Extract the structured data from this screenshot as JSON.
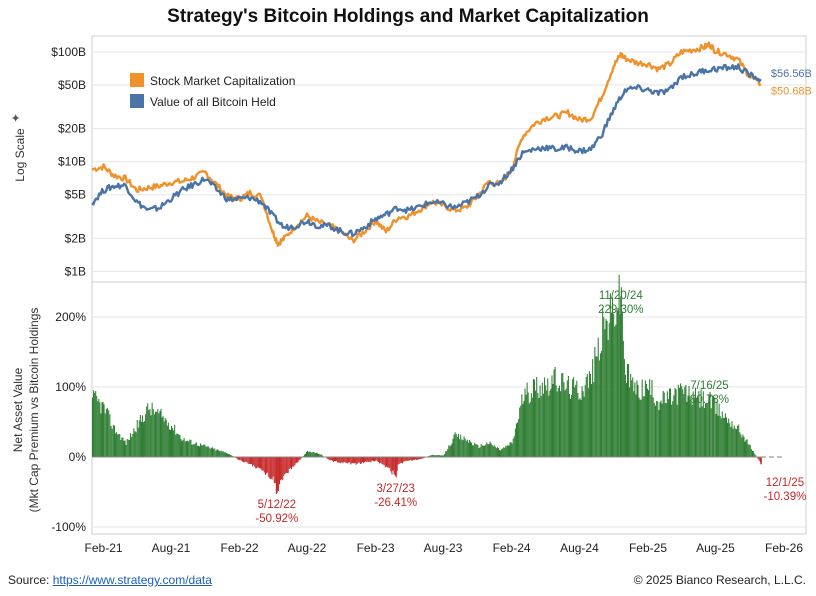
{
  "title": "Strategy's Bitcoin Holdings and Market Capitalization",
  "footer": {
    "source_label": "Source:",
    "source_link": "https://www.strategy.com/data",
    "copyright": "© 2025 Bianco Research, L.L.C."
  },
  "chart_data": [
    {
      "type": "line",
      "panel": "top",
      "ylabel": "Log Scale",
      "y_scale": "log",
      "y_ticks": [
        "$100B",
        "$50B",
        "$20B",
        "$10B",
        "$5B",
        "$2B",
        "$1B"
      ],
      "y_tick_values": [
        100,
        50,
        20,
        10,
        5,
        2,
        1
      ],
      "ylim": [
        0.8,
        140
      ],
      "legend": {
        "placement": "top-left"
      },
      "series": [
        {
          "name": "Stock Market Capitalization",
          "color": "#f0922b",
          "end_label": "$50.68B",
          "points": [
            [
              "2021-01-01",
              8.5
            ],
            [
              "2021-02-01",
              9.0
            ],
            [
              "2021-03-01",
              7.5
            ],
            [
              "2021-04-01",
              7.0
            ],
            [
              "2021-05-01",
              5.5
            ],
            [
              "2021-06-01",
              5.8
            ],
            [
              "2021-07-01",
              6.0
            ],
            [
              "2021-08-01",
              6.5
            ],
            [
              "2021-09-01",
              6.6
            ],
            [
              "2021-10-01",
              7.2
            ],
            [
              "2021-11-01",
              8.0
            ],
            [
              "2021-12-01",
              6.2
            ],
            [
              "2022-01-01",
              4.8
            ],
            [
              "2022-02-01",
              4.6
            ],
            [
              "2022-03-01",
              5.2
            ],
            [
              "2022-04-01",
              4.8
            ],
            [
              "2022-05-01",
              2.3
            ],
            [
              "2022-05-15",
              1.8
            ],
            [
              "2022-06-01",
              2.0
            ],
            [
              "2022-07-01",
              2.6
            ],
            [
              "2022-08-01",
              3.2
            ],
            [
              "2022-09-01",
              2.8
            ],
            [
              "2022-10-01",
              2.6
            ],
            [
              "2022-11-01",
              2.3
            ],
            [
              "2022-12-01",
              1.9
            ],
            [
              "2023-01-01",
              2.3
            ],
            [
              "2023-02-01",
              2.9
            ],
            [
              "2023-03-01",
              2.3
            ],
            [
              "2023-04-01",
              3.1
            ],
            [
              "2023-05-01",
              3.2
            ],
            [
              "2023-06-01",
              3.7
            ],
            [
              "2023-07-01",
              4.3
            ],
            [
              "2023-08-01",
              4.0
            ],
            [
              "2023-09-01",
              3.6
            ],
            [
              "2023-10-01",
              3.8
            ],
            [
              "2023-11-01",
              4.8
            ],
            [
              "2023-12-01",
              6.6
            ],
            [
              "2024-01-01",
              6.2
            ],
            [
              "2024-02-01",
              8.5
            ],
            [
              "2024-03-01",
              17.0
            ],
            [
              "2024-04-01",
              22.0
            ],
            [
              "2024-05-01",
              25.0
            ],
            [
              "2024-06-01",
              26.0
            ],
            [
              "2024-07-01",
              28.0
            ],
            [
              "2024-08-01",
              24.0
            ],
            [
              "2024-09-01",
              25.0
            ],
            [
              "2024-10-01",
              40.0
            ],
            [
              "2024-11-01",
              75.0
            ],
            [
              "2024-11-20",
              95.0
            ],
            [
              "2024-12-01",
              88.0
            ],
            [
              "2025-01-01",
              80.0
            ],
            [
              "2025-02-01",
              78.0
            ],
            [
              "2025-03-01",
              70.0
            ],
            [
              "2025-04-01",
              78.0
            ],
            [
              "2025-05-01",
              100.0
            ],
            [
              "2025-06-01",
              105.0
            ],
            [
              "2025-07-01",
              110.0
            ],
            [
              "2025-07-16",
              118.0
            ],
            [
              "2025-08-01",
              102.0
            ],
            [
              "2025-09-01",
              96.0
            ],
            [
              "2025-10-01",
              85.0
            ],
            [
              "2025-11-01",
              60.0
            ],
            [
              "2025-12-01",
              50.68
            ]
          ]
        },
        {
          "name": "Value of all Bitcoin Held",
          "color": "#4a74a8",
          "end_label": "$56.56B",
          "points": [
            [
              "2021-01-01",
              4.2
            ],
            [
              "2021-02-01",
              5.5
            ],
            [
              "2021-03-01",
              6.0
            ],
            [
              "2021-04-01",
              6.1
            ],
            [
              "2021-05-01",
              4.3
            ],
            [
              "2021-06-01",
              3.6
            ],
            [
              "2021-07-01",
              3.8
            ],
            [
              "2021-08-01",
              4.6
            ],
            [
              "2021-09-01",
              5.5
            ],
            [
              "2021-10-01",
              6.2
            ],
            [
              "2021-11-01",
              7.0
            ],
            [
              "2021-12-01",
              5.6
            ],
            [
              "2022-01-01",
              4.5
            ],
            [
              "2022-02-01",
              4.6
            ],
            [
              "2022-03-01",
              4.7
            ],
            [
              "2022-04-01",
              4.3
            ],
            [
              "2022-05-01",
              3.2
            ],
            [
              "2022-06-01",
              2.5
            ],
            [
              "2022-07-01",
              2.6
            ],
            [
              "2022-08-01",
              2.9
            ],
            [
              "2022-09-01",
              2.6
            ],
            [
              "2022-10-01",
              2.6
            ],
            [
              "2022-11-01",
              2.3
            ],
            [
              "2022-12-01",
              2.2
            ],
            [
              "2023-01-01",
              2.5
            ],
            [
              "2023-02-01",
              3.0
            ],
            [
              "2023-03-01",
              3.3
            ],
            [
              "2023-04-01",
              3.8
            ],
            [
              "2023-05-01",
              3.6
            ],
            [
              "2023-06-01",
              3.9
            ],
            [
              "2023-07-01",
              4.3
            ],
            [
              "2023-08-01",
              4.1
            ],
            [
              "2023-09-01",
              3.8
            ],
            [
              "2023-10-01",
              4.2
            ],
            [
              "2023-11-01",
              4.8
            ],
            [
              "2023-12-01",
              6.0
            ],
            [
              "2024-01-01",
              6.5
            ],
            [
              "2024-02-01",
              8.5
            ],
            [
              "2024-03-01",
              12.0
            ],
            [
              "2024-04-01",
              13.0
            ],
            [
              "2024-05-01",
              13.5
            ],
            [
              "2024-06-01",
              13.0
            ],
            [
              "2024-07-01",
              13.5
            ],
            [
              "2024-08-01",
              12.5
            ],
            [
              "2024-09-01",
              13.0
            ],
            [
              "2024-10-01",
              18.0
            ],
            [
              "2024-11-01",
              30.0
            ],
            [
              "2024-12-01",
              45.0
            ],
            [
              "2025-01-01",
              47.0
            ],
            [
              "2025-02-01",
              45.0
            ],
            [
              "2025-03-01",
              42.0
            ],
            [
              "2025-04-01",
              45.0
            ],
            [
              "2025-05-01",
              60.0
            ],
            [
              "2025-06-01",
              62.0
            ],
            [
              "2025-07-01",
              68.0
            ],
            [
              "2025-08-01",
              70.0
            ],
            [
              "2025-09-01",
              72.0
            ],
            [
              "2025-10-01",
              73.0
            ],
            [
              "2025-11-01",
              62.0
            ],
            [
              "2025-12-01",
              56.56
            ]
          ]
        }
      ]
    },
    {
      "type": "bar",
      "panel": "bottom",
      "ylabel": "Net Asset Value\n(Mkt Cap Premium vs Bitcoin Holdings",
      "ylabel_lines": [
        "Net Asset Value",
        "(Mkt Cap Premium vs Bitcoin Holdings"
      ],
      "y_ticks": [
        "200%",
        "100%",
        "0%",
        "-100%"
      ],
      "y_tick_values": [
        200,
        100,
        0,
        -100
      ],
      "ylim": [
        -110,
        250
      ],
      "positive_color": "#2e7d32",
      "negative_color": "#c62828",
      "points": [
        [
          "2021-01-01",
          85
        ],
        [
          "2021-02-01",
          70
        ],
        [
          "2021-03-01",
          40
        ],
        [
          "2021-04-01",
          20
        ],
        [
          "2021-05-01",
          45
        ],
        [
          "2021-06-01",
          70
        ],
        [
          "2021-07-01",
          60
        ],
        [
          "2021-08-01",
          45
        ],
        [
          "2021-09-01",
          25
        ],
        [
          "2021-10-01",
          20
        ],
        [
          "2021-11-01",
          15
        ],
        [
          "2021-12-01",
          10
        ],
        [
          "2022-01-01",
          5
        ],
        [
          "2022-02-01",
          -5
        ],
        [
          "2022-03-01",
          -10
        ],
        [
          "2022-04-01",
          -20
        ],
        [
          "2022-05-01",
          -30
        ],
        [
          "2022-05-12",
          -50.92
        ],
        [
          "2022-06-01",
          -25
        ],
        [
          "2022-07-01",
          -10
        ],
        [
          "2022-08-01",
          8
        ],
        [
          "2022-09-01",
          5
        ],
        [
          "2022-10-01",
          -5
        ],
        [
          "2022-11-01",
          -8
        ],
        [
          "2022-12-01",
          -10
        ],
        [
          "2023-01-01",
          -8
        ],
        [
          "2023-02-01",
          -5
        ],
        [
          "2023-03-01",
          -15
        ],
        [
          "2023-03-27",
          -26.41
        ],
        [
          "2023-04-01",
          -10
        ],
        [
          "2023-05-01",
          -5
        ],
        [
          "2023-06-01",
          -3
        ],
        [
          "2023-07-01",
          3
        ],
        [
          "2023-08-01",
          2
        ],
        [
          "2023-09-01",
          30
        ],
        [
          "2023-10-01",
          25
        ],
        [
          "2023-11-01",
          15
        ],
        [
          "2023-12-01",
          20
        ],
        [
          "2024-01-01",
          10
        ],
        [
          "2024-02-01",
          20
        ],
        [
          "2024-03-01",
          85
        ],
        [
          "2024-04-01",
          100
        ],
        [
          "2024-05-01",
          105
        ],
        [
          "2024-06-01",
          110
        ],
        [
          "2024-07-01",
          100
        ],
        [
          "2024-08-01",
          95
        ],
        [
          "2024-09-01",
          115
        ],
        [
          "2024-10-01",
          180
        ],
        [
          "2024-11-20",
          229.3
        ],
        [
          "2024-12-01",
          120
        ],
        [
          "2025-01-01",
          95
        ],
        [
          "2025-02-01",
          100
        ],
        [
          "2025-03-01",
          80
        ],
        [
          "2025-04-01",
          85
        ],
        [
          "2025-05-01",
          95
        ],
        [
          "2025-06-01",
          85
        ],
        [
          "2025-07-16",
          80.78
        ],
        [
          "2025-08-01",
          70
        ],
        [
          "2025-09-01",
          55
        ],
        [
          "2025-10-01",
          40
        ],
        [
          "2025-11-01",
          15
        ],
        [
          "2025-12-01",
          -10.39
        ]
      ],
      "zero_line_dashed_to": "2026-02-01"
    }
  ],
  "x_axis": {
    "ticks": [
      "Feb-21",
      "Aug-21",
      "Feb-22",
      "Aug-22",
      "Feb-23",
      "Aug-23",
      "Feb-24",
      "Aug-24",
      "Feb-25",
      "Aug-25",
      "Feb-26"
    ],
    "tick_dates": [
      "2021-02-01",
      "2021-08-01",
      "2022-02-01",
      "2022-08-01",
      "2023-02-01",
      "2023-08-01",
      "2024-02-01",
      "2024-08-01",
      "2025-02-01",
      "2025-08-01",
      "2026-02-01"
    ],
    "range": [
      "2021-01-01",
      "2026-04-01"
    ]
  },
  "annotations": [
    {
      "date": "2024-11-20",
      "lines": [
        "11/20/24",
        "229.30%"
      ],
      "tone": "green"
    },
    {
      "date": "2025-07-16",
      "lines": [
        "7/16/25",
        "80.78%"
      ],
      "tone": "green"
    },
    {
      "date": "2022-05-12",
      "lines": [
        "5/12/22",
        "-50.92%"
      ],
      "tone": "red"
    },
    {
      "date": "2023-03-27",
      "lines": [
        "3/27/23",
        "-26.41%"
      ],
      "tone": "red"
    },
    {
      "date": "2025-12-01",
      "lines": [
        "12/1/25",
        "-10.39%"
      ],
      "tone": "red"
    }
  ]
}
